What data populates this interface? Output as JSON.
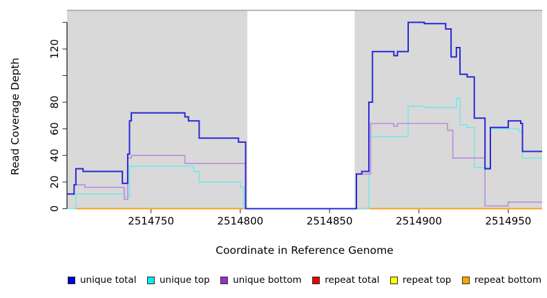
{
  "figure": {
    "xlabel": "Coordinate in Reference Genome",
    "ylabel": "Read Coverage Depth"
  },
  "chart_data": {
    "type": "line",
    "step": true,
    "title": "",
    "xlabel": "Coordinate in Reference Genome",
    "ylabel": "Read Coverage Depth",
    "xlim": [
      2514703,
      2514969
    ],
    "ylim": [
      0,
      149
    ],
    "x_ticks": [
      2514750,
      2514800,
      2514850,
      2514900,
      2514950
    ],
    "y_ticks": [
      0,
      20,
      40,
      60,
      80,
      100,
      120,
      140
    ],
    "y_tick_labels_shown": [
      0,
      20,
      40,
      60,
      80,
      120
    ],
    "grid": false,
    "panel_color": "#d9d9d9",
    "panel_border_color": "#909090",
    "masked_region": {
      "start": 2514804,
      "end": 2514864,
      "color": "#ffffff"
    },
    "legend_position": "bottom",
    "series": [
      {
        "name": "repeat total",
        "color": "#dd2222",
        "legend_color": "#ee0000",
        "width": 1.5,
        "points": [
          [
            2514708,
            0
          ],
          [
            2514969,
            0
          ]
        ]
      },
      {
        "name": "repeat top",
        "color": "#f5f500",
        "legend_color": "#ffff00",
        "width": 1.5,
        "points": [
          [
            2514708,
            0
          ],
          [
            2514969,
            0
          ]
        ]
      },
      {
        "name": "repeat bottom",
        "color": "#ff9e1b",
        "legend_color": "#ffa500",
        "width": 2,
        "points": [
          [
            2514708,
            0
          ],
          [
            2514969,
            0
          ]
        ]
      },
      {
        "name": "unique top",
        "color": "#79e6e6",
        "legend_color": "#00eeee",
        "width": 1.6,
        "points": [
          [
            2514703,
            0
          ],
          [
            2514708,
            11
          ],
          [
            2514735,
            9
          ],
          [
            2514738,
            32
          ],
          [
            2514774,
            28
          ],
          [
            2514777,
            20
          ],
          [
            2514800,
            16
          ],
          [
            2514802,
            0
          ],
          [
            2514872,
            54
          ],
          [
            2514894,
            77
          ],
          [
            2514903,
            76
          ],
          [
            2514921,
            83
          ],
          [
            2514923,
            63
          ],
          [
            2514927,
            61
          ],
          [
            2514931,
            31
          ],
          [
            2514940,
            60
          ],
          [
            2514956,
            58
          ],
          [
            2514958,
            38
          ],
          [
            2514969,
            38
          ]
        ]
      },
      {
        "name": "unique bottom",
        "color": "#bb8cdd",
        "legend_color": "#9932cc",
        "width": 1.6,
        "points": [
          [
            2514703,
            11
          ],
          [
            2514707,
            18
          ],
          [
            2514713,
            16
          ],
          [
            2514735,
            7
          ],
          [
            2514737,
            38
          ],
          [
            2514739,
            40
          ],
          [
            2514769,
            34
          ],
          [
            2514803,
            0
          ],
          [
            2514865,
            26
          ],
          [
            2514873,
            64
          ],
          [
            2514886,
            62
          ],
          [
            2514888,
            64
          ],
          [
            2514916,
            59
          ],
          [
            2514919,
            38
          ],
          [
            2514937,
            2
          ],
          [
            2514950,
            5
          ],
          [
            2514969,
            5
          ]
        ]
      },
      {
        "name": "unique total",
        "color": "#2727d8",
        "legend_color": "#0000ee",
        "width": 2,
        "points": [
          [
            2514703,
            11
          ],
          [
            2514707,
            18
          ],
          [
            2514708,
            30
          ],
          [
            2514712,
            28
          ],
          [
            2514734,
            19
          ],
          [
            2514737,
            41
          ],
          [
            2514738,
            66
          ],
          [
            2514739,
            72
          ],
          [
            2514769,
            69
          ],
          [
            2514771,
            66
          ],
          [
            2514777,
            53
          ],
          [
            2514799,
            50
          ],
          [
            2514803,
            0
          ],
          [
            2514865,
            26
          ],
          [
            2514868,
            28
          ],
          [
            2514872,
            80
          ],
          [
            2514874,
            118
          ],
          [
            2514886,
            115
          ],
          [
            2514888,
            118
          ],
          [
            2514894,
            140
          ],
          [
            2514903,
            139
          ],
          [
            2514915,
            135
          ],
          [
            2514918,
            114
          ],
          [
            2514921,
            121
          ],
          [
            2514923,
            101
          ],
          [
            2514927,
            99
          ],
          [
            2514931,
            68
          ],
          [
            2514937,
            30
          ],
          [
            2514940,
            61
          ],
          [
            2514950,
            66
          ],
          [
            2514957,
            64
          ],
          [
            2514958,
            43
          ],
          [
            2514969,
            43
          ]
        ]
      }
    ]
  },
  "legend": {
    "items": [
      {
        "label": "unique total",
        "color": "#0000ee"
      },
      {
        "label": "unique top",
        "color": "#00eeee"
      },
      {
        "label": "unique bottom",
        "color": "#9932cc"
      },
      {
        "label": "repeat total",
        "color": "#ee0000"
      },
      {
        "label": "repeat top",
        "color": "#ffff00"
      },
      {
        "label": "repeat bottom",
        "color": "#ffa500"
      }
    ]
  }
}
